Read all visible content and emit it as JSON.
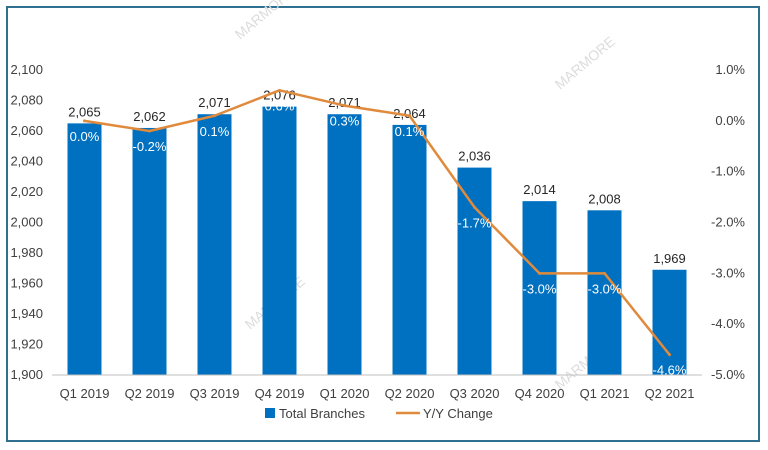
{
  "chart_data": {
    "type": "bar",
    "categories": [
      "Q1 2019",
      "Q2 2019",
      "Q3 2019",
      "Q4 2019",
      "Q1 2020",
      "Q2 2020",
      "Q3 2020",
      "Q4 2020",
      "Q1 2021",
      "Q2 2021"
    ],
    "series": [
      {
        "name": "Total Branches",
        "type": "bar",
        "axis": "left",
        "values": [
          2065,
          2062,
          2071,
          2076,
          2071,
          2064,
          2036,
          2014,
          2008,
          1969
        ],
        "labels": [
          "2,065",
          "2,062",
          "2,071",
          "2,076",
          "2,071",
          "2,064",
          "2,036",
          "2,014",
          "2,008",
          "1,969"
        ]
      },
      {
        "name": "Y/Y Change",
        "type": "line",
        "axis": "right",
        "values": [
          0.0,
          -0.2,
          0.1,
          0.6,
          0.3,
          0.1,
          -1.7,
          -3.0,
          -3.0,
          -4.6
        ],
        "labels": [
          "0.0%",
          "-0.2%",
          "0.1%",
          "0.6%",
          "0.3%",
          "0.1%",
          "-1.7%",
          "-3.0%",
          "-3.0%",
          "-4.6%"
        ]
      }
    ],
    "ylim_left": [
      1900,
      2100
    ],
    "yticks_left": [
      "1,900",
      "1,920",
      "1,940",
      "1,960",
      "1,980",
      "2,000",
      "2,020",
      "2,040",
      "2,060",
      "2,080",
      "2,100"
    ],
    "ylim_right": [
      -5.0,
      1.0
    ],
    "yticks_right": [
      "-5.0%",
      "-4.0%",
      "-3.0%",
      "-2.0%",
      "-1.0%",
      "0.0%",
      "1.0%"
    ],
    "legend_position": "bottom",
    "watermark": "MARMORE",
    "colors": {
      "bar": "#0070c0",
      "line": "#e08a3c",
      "border": "#2f6f8f"
    }
  }
}
